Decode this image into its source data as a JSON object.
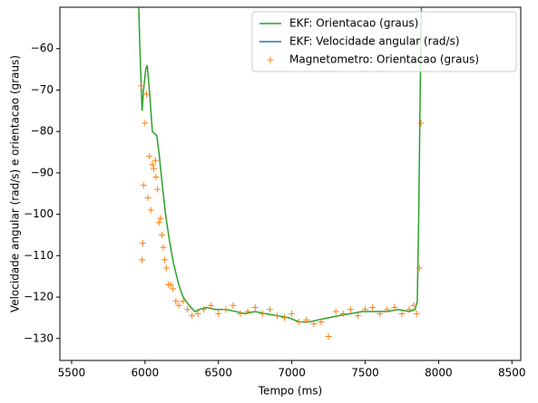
{
  "chart_data": {
    "type": "line",
    "xlabel": "Tempo (ms)",
    "ylabel": "Velocidade angular (rad/s) e orientacao (graus)",
    "xlim": [
      5420,
      8560
    ],
    "ylim": [
      -135.3,
      -50
    ],
    "xticks": [
      5500,
      6000,
      6500,
      7000,
      7500,
      8000,
      8500
    ],
    "yticks": [
      {
        "value": -130,
        "label": "−130"
      },
      {
        "value": -120,
        "label": "−120"
      },
      {
        "value": -110,
        "label": "−110"
      },
      {
        "value": -100,
        "label": "−100"
      },
      {
        "value": -90,
        "label": "−90"
      },
      {
        "value": -80,
        "label": "−80"
      },
      {
        "value": -70,
        "label": "−70"
      },
      {
        "value": -60,
        "label": "−60"
      }
    ],
    "legend": "upper right",
    "series": [
      {
        "name": "EKF: Orientacao (graus)",
        "color": "#2ca02c",
        "mode": "line",
        "x": [
          5950,
          5965,
          5980,
          5990,
          6005,
          6015,
          6030,
          6050,
          6065,
          6080,
          6095,
          6115,
          6140,
          6165,
          6195,
          6230,
          6260,
          6300,
          6340,
          6370,
          6420,
          6480,
          6550,
          6620,
          6680,
          6750,
          6820,
          6900,
          6980,
          7050,
          7120,
          7180,
          7250,
          7320,
          7400,
          7480,
          7560,
          7650,
          7730,
          7800,
          7840,
          7855,
          7865,
          7875,
          7885
        ],
        "values": [
          -40,
          -60,
          -75,
          -70,
          -65,
          -64,
          -70,
          -80,
          -80.5,
          -81,
          -85,
          -92,
          -100,
          -106,
          -112,
          -117,
          -120,
          -122,
          -123.5,
          -123,
          -122.5,
          -123,
          -123,
          -123.5,
          -124,
          -123.5,
          -124,
          -124.5,
          -125,
          -126,
          -126,
          -125.5,
          -125,
          -124.5,
          -124,
          -123.5,
          -123.5,
          -123.5,
          -123,
          -123.5,
          -123,
          -121,
          -100,
          -70,
          -45
        ]
      },
      {
        "name": "EKF: Velocidade angular (rad/s)",
        "color": "#1f77b4",
        "mode": "line",
        "x": [
          5950,
          7885
        ],
        "values": [
          null,
          null
        ]
      },
      {
        "name": "Magnetometro: Orientacao (graus)",
        "color": "#ff7f0e",
        "mode": "marker",
        "x": [
          5975,
          5980,
          5985,
          5990,
          6000,
          6010,
          6020,
          6030,
          6040,
          6050,
          6060,
          6070,
          6075,
          6085,
          6095,
          6105,
          6115,
          6125,
          6135,
          6145,
          6160,
          6175,
          6190,
          6210,
          6230,
          6260,
          6290,
          6320,
          6360,
          6400,
          6450,
          6500,
          6550,
          6600,
          6650,
          6700,
          6750,
          6800,
          6850,
          6900,
          6950,
          7000,
          7050,
          7100,
          7150,
          7200,
          7250,
          7300,
          7350,
          7400,
          7450,
          7500,
          7550,
          7600,
          7650,
          7700,
          7750,
          7800,
          7830,
          7850,
          7870,
          7880
        ],
        "values": [
          -69,
          -111,
          -107,
          -93,
          -78,
          -71,
          -96,
          -86,
          -99,
          -88,
          -89,
          -87,
          -91,
          -94,
          -102,
          -101,
          -105,
          -108,
          -111,
          -113,
          -117,
          -117,
          -118,
          -121,
          -122,
          -121,
          -123,
          -124.5,
          -124,
          -123,
          -122,
          -124,
          -123,
          -122,
          -124,
          -123.5,
          -122.5,
          -124,
          -123,
          -124.5,
          -125,
          -124,
          -126,
          -125.5,
          -126.5,
          -126,
          -129.5,
          -123.5,
          -124,
          -123,
          -124.5,
          -123,
          -122.5,
          -124,
          -123,
          -122.5,
          -124,
          -123,
          -122,
          -124,
          -113,
          -78
        ]
      }
    ]
  }
}
